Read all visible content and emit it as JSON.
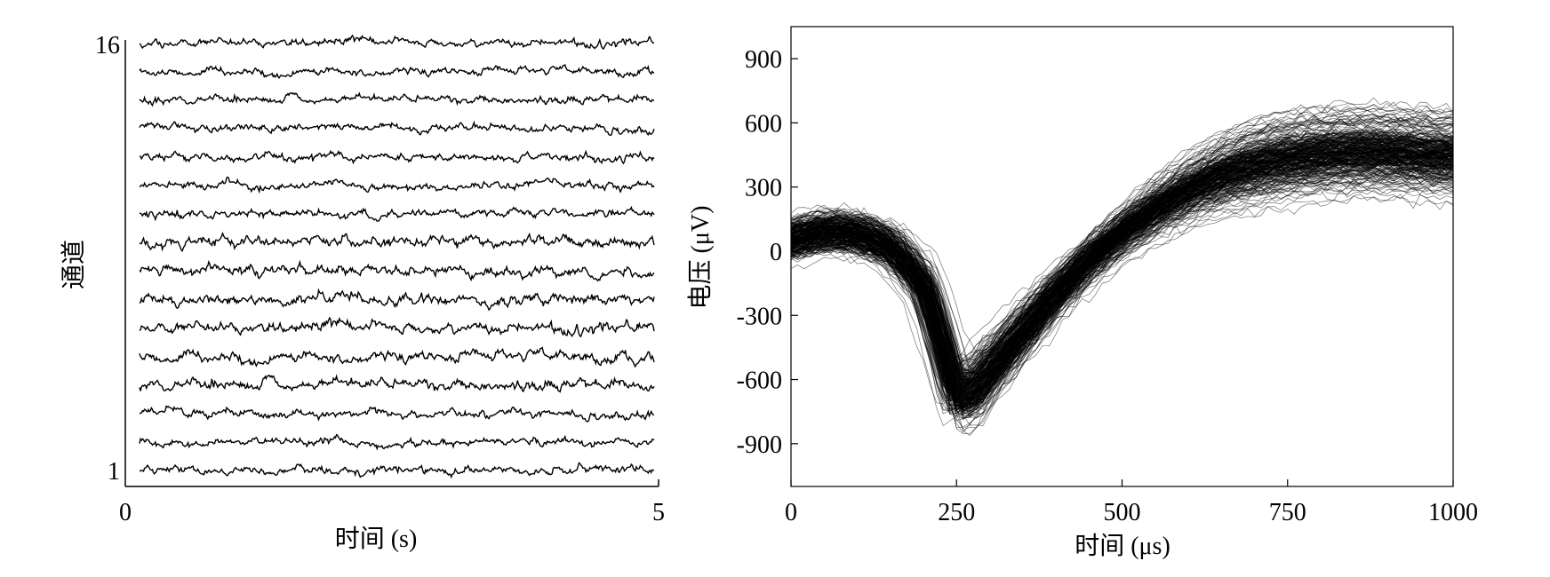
{
  "chart_data": [
    {
      "type": "line",
      "title": "",
      "xlabel": "时间 (s)",
      "ylabel": "通道",
      "xlim": [
        0,
        5
      ],
      "x_ticks": [
        "0",
        "5"
      ],
      "y_ticks": [
        "1",
        "16"
      ],
      "channels": 16,
      "line_color": "#000000",
      "grid": false,
      "legend": "none",
      "series_description": "16 stacked raw signal traces, channel 1 at bottom to channel 16 at top, spanning 0–5 s"
    },
    {
      "type": "line",
      "title": "",
      "xlabel": "时间 (μs)",
      "ylabel": "电压 (μV)",
      "xlim": [
        0,
        1000
      ],
      "ylim": [
        -1100,
        1050
      ],
      "x_ticks": [
        "0",
        "250",
        "500",
        "750",
        "1000"
      ],
      "y_ticks": [
        "900",
        "600",
        "300",
        "0",
        "-300",
        "-600",
        "-900"
      ],
      "line_color": "#000000",
      "grid": false,
      "legend": "none",
      "mean_waveform": {
        "x": [
          0,
          50,
          100,
          150,
          200,
          225,
          250,
          275,
          300,
          350,
          400,
          450,
          500,
          550,
          600,
          650,
          700,
          750,
          800,
          850,
          900,
          950,
          1000
        ],
        "y": [
          50,
          90,
          80,
          20,
          -150,
          -400,
          -680,
          -660,
          -560,
          -380,
          -200,
          -40,
          90,
          200,
          290,
          360,
          410,
          440,
          460,
          470,
          470,
          460,
          450
        ]
      },
      "overlaid_traces_approx": 300
    }
  ]
}
